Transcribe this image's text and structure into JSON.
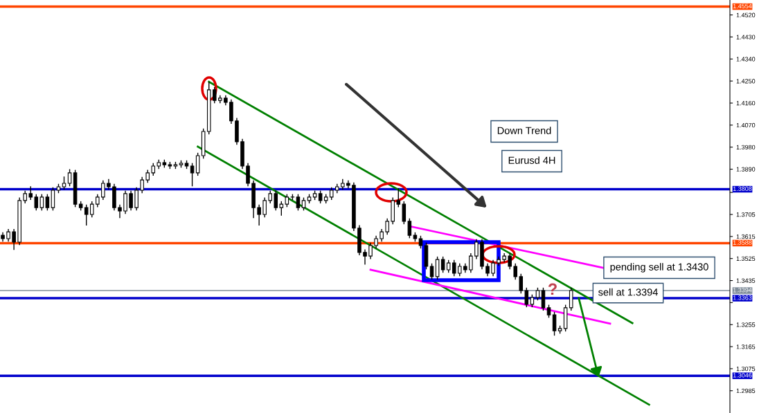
{
  "chart_data": {
    "type": "candlestick",
    "categories": [
      null,
      null,
      null,
      null,
      null,
      null,
      null,
      null,
      null,
      null,
      null,
      null,
      null,
      null,
      null,
      null,
      null,
      null,
      null,
      null,
      null,
      null,
      null,
      null,
      null,
      null,
      null,
      null,
      null,
      null,
      null,
      null,
      null,
      null,
      null,
      null,
      null,
      null,
      null,
      null,
      null,
      null,
      null,
      null,
      null,
      null,
      null,
      null,
      null,
      null,
      null,
      null,
      null,
      null,
      null,
      null,
      null,
      null,
      null,
      null,
      null,
      null,
      null,
      null,
      null,
      null,
      null,
      null,
      null,
      null,
      null,
      null,
      null,
      null,
      null,
      null,
      null,
      null,
      null,
      null,
      null,
      null,
      null,
      null,
      null,
      null,
      null,
      null,
      null,
      null,
      null,
      null,
      null,
      null,
      null,
      null,
      null,
      null,
      null,
      null,
      null,
      null,
      null,
      null,
      null,
      null,
      null,
      null,
      null,
      null,
      null,
      null,
      null,
      null,
      null,
      null,
      null,
      null,
      null,
      null,
      null,
      null,
      null,
      null,
      null,
      null,
      null,
      null,
      null,
      null,
      null
    ],
    "ohlc": [
      [
        1.362,
        1.3632,
        1.3594,
        1.3606
      ],
      [
        1.3606,
        1.3646,
        1.3594,
        1.3634
      ],
      [
        1.3634,
        1.3646,
        1.356,
        1.3592
      ],
      [
        1.3592,
        1.3774,
        1.358,
        1.3762
      ],
      [
        1.3762,
        1.3802,
        1.375,
        1.379
      ],
      [
        1.379,
        1.382,
        1.3764,
        1.3776
      ],
      [
        1.3776,
        1.3788,
        1.3721,
        1.3733
      ],
      [
        1.3733,
        1.3788,
        1.3721,
        1.3776
      ],
      [
        1.3776,
        1.3788,
        1.3721,
        1.3733
      ],
      [
        1.3733,
        1.3816,
        1.3721,
        1.3804
      ],
      [
        1.3804,
        1.383,
        1.3792,
        1.3818
      ],
      [
        1.3818,
        1.386,
        1.3806,
        1.3832
      ],
      [
        1.3832,
        1.389,
        1.382,
        1.3875
      ],
      [
        1.3875,
        1.3887,
        1.3735,
        1.3747
      ],
      [
        1.3747,
        1.3759,
        1.3721,
        1.3733
      ],
      [
        1.3733,
        1.3745,
        1.366,
        1.3705
      ],
      [
        1.3705,
        1.3759,
        1.3693,
        1.3747
      ],
      [
        1.3747,
        1.3788,
        1.3735,
        1.3776
      ],
      [
        1.3776,
        1.3844,
        1.3764,
        1.3832
      ],
      [
        1.3832,
        1.385,
        1.3806,
        1.3818
      ],
      [
        1.3818,
        1.383,
        1.3721,
        1.3733
      ],
      [
        1.3733,
        1.3745,
        1.369,
        1.3719
      ],
      [
        1.3719,
        1.3802,
        1.3707,
        1.379
      ],
      [
        1.379,
        1.3802,
        1.3721,
        1.3733
      ],
      [
        1.3733,
        1.3816,
        1.3721,
        1.3804
      ],
      [
        1.3804,
        1.3858,
        1.3792,
        1.3846
      ],
      [
        1.3846,
        1.3887,
        1.3834,
        1.3875
      ],
      [
        1.3875,
        1.3915,
        1.3863,
        1.3903
      ],
      [
        1.3903,
        1.3929,
        1.3891,
        1.3917
      ],
      [
        1.3917,
        1.3929,
        1.3896,
        1.3908
      ],
      [
        1.3908,
        1.392,
        1.3891,
        1.3903
      ],
      [
        1.3903,
        1.392,
        1.3891,
        1.3908
      ],
      [
        1.3908,
        1.3926,
        1.3896,
        1.3914
      ],
      [
        1.3914,
        1.3926,
        1.3891,
        1.3903
      ],
      [
        1.3903,
        1.3915,
        1.382,
        1.3875
      ],
      [
        1.3875,
        1.3957,
        1.3863,
        1.3945
      ],
      [
        1.3945,
        1.4056,
        1.3933,
        1.4044
      ],
      [
        1.4044,
        1.4247,
        1.4032,
        1.4214
      ],
      [
        1.4214,
        1.4226,
        1.4159,
        1.4171
      ],
      [
        1.4171,
        1.4192,
        1.4159,
        1.418
      ],
      [
        1.418,
        1.4192,
        1.4151,
        1.4163
      ],
      [
        1.4163,
        1.4175,
        1.4075,
        1.4087
      ],
      [
        1.4087,
        1.4099,
        1.399,
        1.4002
      ],
      [
        1.4002,
        1.4014,
        1.3891,
        1.3903
      ],
      [
        1.3903,
        1.3915,
        1.382,
        1.3832
      ],
      [
        1.3832,
        1.3844,
        1.369,
        1.3733
      ],
      [
        1.3733,
        1.3745,
        1.366,
        1.3705
      ],
      [
        1.3705,
        1.3774,
        1.3693,
        1.3762
      ],
      [
        1.3762,
        1.3802,
        1.375,
        1.379
      ],
      [
        1.379,
        1.3802,
        1.3721,
        1.3733
      ],
      [
        1.3733,
        1.3759,
        1.37,
        1.3747
      ],
      [
        1.3747,
        1.3788,
        1.3735,
        1.3776
      ],
      [
        1.3776,
        1.3788,
        1.3764,
        1.3776
      ],
      [
        1.3776,
        1.3788,
        1.3721,
        1.3733
      ],
      [
        1.3733,
        1.3774,
        1.3721,
        1.3762
      ],
      [
        1.3762,
        1.3788,
        1.375,
        1.3776
      ],
      [
        1.3776,
        1.3802,
        1.3764,
        1.379
      ],
      [
        1.379,
        1.3802,
        1.375,
        1.3762
      ],
      [
        1.3762,
        1.3788,
        1.375,
        1.3776
      ],
      [
        1.3776,
        1.3816,
        1.3764,
        1.3804
      ],
      [
        1.3804,
        1.383,
        1.3792,
        1.3818
      ],
      [
        1.3818,
        1.385,
        1.3806,
        1.3832
      ],
      [
        1.3832,
        1.3844,
        1.3812,
        1.3824
      ],
      [
        1.3824,
        1.3836,
        1.3637,
        1.3649
      ],
      [
        1.3649,
        1.3661,
        1.3538,
        1.355
      ],
      [
        1.355,
        1.3562,
        1.35,
        1.3535
      ],
      [
        1.3535,
        1.359,
        1.3523,
        1.3578
      ],
      [
        1.3578,
        1.3618,
        1.3566,
        1.3606
      ],
      [
        1.3606,
        1.3646,
        1.3594,
        1.3634
      ],
      [
        1.3634,
        1.3689,
        1.3622,
        1.3677
      ],
      [
        1.3677,
        1.3774,
        1.3665,
        1.3762
      ],
      [
        1.3762,
        1.3812,
        1.3735,
        1.3747
      ],
      [
        1.3747,
        1.3759,
        1.3665,
        1.3677
      ],
      [
        1.3677,
        1.3689,
        1.3608,
        1.362
      ],
      [
        1.362,
        1.3632,
        1.3594,
        1.3606
      ],
      [
        1.3606,
        1.3618,
        1.3566,
        1.3578
      ],
      [
        1.3578,
        1.359,
        1.3481,
        1.3493
      ],
      [
        1.3493,
        1.3505,
        1.3439,
        1.3451
      ],
      [
        1.3451,
        1.3533,
        1.3439,
        1.3521
      ],
      [
        1.3521,
        1.3533,
        1.3467,
        1.3479
      ],
      [
        1.3479,
        1.3519,
        1.3467,
        1.3507
      ],
      [
        1.3507,
        1.3519,
        1.3453,
        1.3465
      ],
      [
        1.3465,
        1.3505,
        1.3453,
        1.3493
      ],
      [
        1.3493,
        1.3505,
        1.3467,
        1.3479
      ],
      [
        1.3479,
        1.3547,
        1.3467,
        1.3535
      ],
      [
        1.3535,
        1.3604,
        1.3523,
        1.3592
      ],
      [
        1.3592,
        1.3604,
        1.3481,
        1.3493
      ],
      [
        1.3493,
        1.3505,
        1.3453,
        1.3465
      ],
      [
        1.3465,
        1.3519,
        1.3453,
        1.3507
      ],
      [
        1.3507,
        1.3533,
        1.3495,
        1.3521
      ],
      [
        1.3521,
        1.3547,
        1.3509,
        1.3535
      ],
      [
        1.3535,
        1.3547,
        1.3481,
        1.3493
      ],
      [
        1.3493,
        1.3505,
        1.3439,
        1.3451
      ],
      [
        1.3451,
        1.3463,
        1.3382,
        1.3394
      ],
      [
        1.3394,
        1.3406,
        1.3326,
        1.3338
      ],
      [
        1.3338,
        1.3378,
        1.3326,
        1.3366
      ],
      [
        1.3366,
        1.3406,
        1.3354,
        1.3394
      ],
      [
        1.3394,
        1.3406,
        1.3312,
        1.3324
      ],
      [
        1.3324,
        1.3336,
        1.3283,
        1.3295
      ],
      [
        1.3295,
        1.3307,
        1.321,
        1.323
      ],
      [
        1.323,
        1.3251,
        1.3218,
        1.3239
      ],
      [
        1.3239,
        1.3336,
        1.3227,
        1.3324
      ],
      [
        1.3324,
        1.3406,
        1.3312,
        1.3394
      ],
      null,
      null,
      null,
      null,
      null,
      null,
      null,
      null,
      null,
      null,
      null,
      null,
      null,
      null,
      null,
      null,
      null,
      null,
      null,
      null,
      null,
      null,
      null,
      null,
      null,
      null,
      null,
      null
    ],
    "series": [
      {
        "type": "line",
        "color": "#008000",
        "values": [
          null,
          null,
          null,
          null,
          null,
          null,
          null,
          null,
          null,
          null,
          null,
          null,
          null,
          null,
          null,
          null,
          null,
          null,
          null,
          null,
          null,
          null,
          null,
          null,
          null,
          null,
          null,
          null,
          null,
          null,
          null,
          null,
          null,
          null,
          null,
          null,
          null,
          1.4247,
          null,
          null,
          null,
          null,
          null,
          null,
          null,
          null,
          null,
          null,
          null,
          null,
          null,
          null,
          null,
          null,
          null,
          null,
          null,
          null,
          null,
          null,
          null,
          null,
          null,
          null,
          null,
          null,
          null,
          null,
          null,
          null,
          null,
          null,
          null,
          null,
          null,
          null,
          null,
          null,
          null,
          null,
          null,
          null,
          null,
          null,
          null,
          null,
          null,
          null,
          null,
          null,
          null,
          null,
          null,
          null,
          null,
          null,
          null,
          null,
          null,
          null,
          null,
          null,
          null,
          null,
          null,
          null,
          null,
          null,
          null,
          null,
          null,
          null,
          null,
          1.3261,
          null,
          null,
          null,
          null,
          null,
          null,
          null,
          null,
          null,
          null,
          null,
          null,
          null,
          null,
          null,
          null,
          null
        ]
      },
      {
        "type": "line",
        "color": "#008000",
        "values": [
          null,
          null,
          null,
          null,
          null,
          null,
          null,
          null,
          null,
          null,
          null,
          null,
          null,
          null,
          null,
          null,
          null,
          null,
          null,
          null,
          null,
          null,
          null,
          null,
          null,
          null,
          null,
          null,
          null,
          null,
          null,
          null,
          null,
          null,
          null,
          1.3982,
          null,
          null,
          null,
          null,
          null,
          null,
          null,
          null,
          null,
          null,
          null,
          null,
          null,
          null,
          null,
          null,
          null,
          null,
          null,
          null,
          null,
          null,
          null,
          null,
          null,
          null,
          null,
          null,
          null,
          null,
          null,
          null,
          null,
          null,
          null,
          null,
          null,
          null,
          null,
          null,
          null,
          null,
          null,
          null,
          null,
          null,
          null,
          null,
          null,
          null,
          null,
          null,
          null,
          null,
          null,
          null,
          null,
          null,
          null,
          null,
          null,
          null,
          null,
          null,
          null,
          null,
          null,
          null,
          null,
          null,
          null,
          null,
          null,
          null,
          null,
          null,
          null,
          null,
          null,
          null,
          1.2928,
          null,
          null,
          null,
          null,
          null,
          null,
          null,
          null,
          null,
          null,
          null,
          null,
          null,
          null
        ]
      },
      {
        "type": "line",
        "color": "#ff00ff",
        "values": [
          null,
          null,
          null,
          null,
          null,
          null,
          null,
          null,
          null,
          null,
          null,
          null,
          null,
          null,
          null,
          null,
          null,
          null,
          null,
          null,
          null,
          null,
          null,
          null,
          null,
          null,
          null,
          null,
          null,
          null,
          null,
          null,
          null,
          null,
          null,
          null,
          null,
          null,
          null,
          null,
          null,
          null,
          null,
          null,
          null,
          null,
          null,
          null,
          null,
          null,
          null,
          null,
          null,
          null,
          null,
          null,
          null,
          null,
          null,
          null,
          null,
          null,
          null,
          null,
          null,
          null,
          null,
          null,
          null,
          null,
          null,
          null,
          null,
          1.3657,
          null,
          null,
          null,
          null,
          null,
          null,
          null,
          null,
          null,
          null,
          null,
          null,
          null,
          null,
          null,
          null,
          null,
          null,
          null,
          null,
          null,
          null,
          null,
          null,
          null,
          null,
          null,
          null,
          null,
          null,
          null,
          null,
          null,
          null,
          1.3486,
          null,
          null,
          null,
          null,
          null,
          null,
          null,
          null,
          null,
          null,
          null,
          null,
          null,
          null,
          null,
          null,
          null,
          null,
          null,
          null,
          null,
          null
        ]
      },
      {
        "type": "line",
        "color": "#ff00ff",
        "values": [
          null,
          null,
          null,
          null,
          null,
          null,
          null,
          null,
          null,
          null,
          null,
          null,
          null,
          null,
          null,
          null,
          null,
          null,
          null,
          null,
          null,
          null,
          null,
          null,
          null,
          null,
          null,
          null,
          null,
          null,
          null,
          null,
          null,
          null,
          null,
          null,
          null,
          null,
          null,
          null,
          null,
          null,
          null,
          null,
          null,
          null,
          null,
          null,
          null,
          null,
          null,
          null,
          null,
          null,
          null,
          null,
          null,
          null,
          null,
          null,
          null,
          null,
          null,
          null,
          null,
          null,
          1.3479,
          null,
          null,
          null,
          null,
          null,
          null,
          null,
          null,
          null,
          null,
          null,
          null,
          null,
          null,
          null,
          null,
          null,
          null,
          null,
          null,
          null,
          null,
          null,
          null,
          null,
          null,
          null,
          null,
          null,
          null,
          null,
          null,
          null,
          null,
          null,
          null,
          null,
          null,
          null,
          null,
          null,
          null,
          1.3259,
          null,
          null,
          null,
          null,
          null,
          null,
          null,
          null,
          null,
          null,
          null,
          null,
          null,
          null,
          null,
          null,
          null,
          null,
          null,
          null,
          null
        ]
      }
    ],
    "ylim": [
      1.2894,
      1.4581
    ],
    "yticks": [
      {
        "value": 1.452,
        "label": "1.4520"
      },
      {
        "value": 1.443,
        "label": "1.4430"
      },
      {
        "value": 1.434,
        "label": "1.4340"
      },
      {
        "value": 1.425,
        "label": "1.4250"
      },
      {
        "value": 1.416,
        "label": "1.4160"
      },
      {
        "value": 1.407,
        "label": "1.4070"
      },
      {
        "value": 1.398,
        "label": "1.3980"
      },
      {
        "value": 1.389,
        "label": "1.3890"
      },
      {
        "value": 1.3795,
        "label": null
      },
      {
        "value": 1.3705,
        "label": "1.3705"
      },
      {
        "value": 1.3615,
        "label": "1.3615"
      },
      {
        "value": 1.3525,
        "label": "1.3525"
      },
      {
        "value": 1.3435,
        "label": "1.3435"
      },
      {
        "value": 1.3345,
        "label": null
      },
      {
        "value": 1.3255,
        "label": "1.3255"
      },
      {
        "value": 1.3165,
        "label": "1.3165"
      },
      {
        "value": 1.3075,
        "label": "1.3075"
      },
      {
        "value": 1.2985,
        "label": "1.2985"
      }
    ],
    "tick_labels": "y",
    "grid": false,
    "legend": false,
    "ref_lines": [
      {
        "axis": "y",
        "value": 1.4554,
        "label": "1.4554",
        "color": "#ff4500"
      },
      {
        "axis": "y",
        "value": 1.3808,
        "label": "1.3808",
        "color": "#0000cc"
      },
      {
        "axis": "y",
        "value": 1.3588,
        "label": "1.3588",
        "color": "#ff4500"
      },
      {
        "axis": "y",
        "value": 1.3394,
        "label": "1.3394",
        "color": "#7f8c99"
      },
      {
        "axis": "y",
        "value": 1.3363,
        "label": "1.3363",
        "color": "#0000cc"
      },
      {
        "axis": "y",
        "value": 1.3046,
        "label": "1.3046",
        "color": "#0000cc"
      }
    ],
    "annotations": [
      "Down Trend",
      "Eurusd 4H",
      "pending sell at 1.3430",
      {
        "text": "sell at 1.3394",
        "y": 1.3394
      },
      "?"
    ]
  }
}
